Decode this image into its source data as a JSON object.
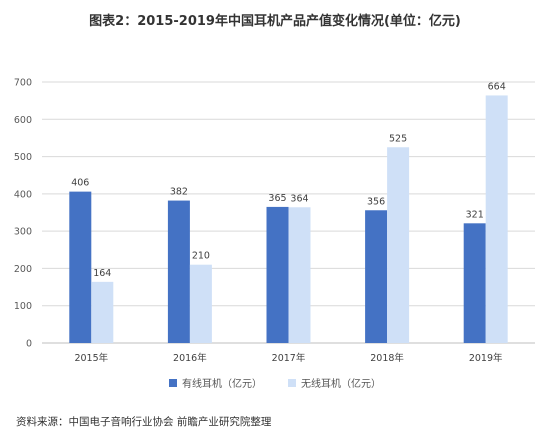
{
  "title": "图表2：2015-2019年中国耳机产品产值变化情况(单位：亿元)",
  "source": "资料来源：中国电子音响行业协会 前瞻产业研究院整理",
  "colors": {
    "wired": "#4472c4",
    "wireless": "#cfe0f7",
    "grid": "#d9d9d9",
    "axis": "#bfbfbf"
  },
  "chart_data": {
    "type": "bar",
    "title": "图表2：2015-2019年中国耳机产品产值变化情况(单位：亿元)",
    "xlabel": "",
    "ylabel": "",
    "categories": [
      "2015年",
      "2016年",
      "2017年",
      "2018年",
      "2019年"
    ],
    "series": [
      {
        "name": "有线耳机（亿元）",
        "values": [
          406,
          382,
          365,
          356,
          321
        ]
      },
      {
        "name": "无线耳机（亿元）",
        "values": [
          164,
          210,
          364,
          525,
          664
        ]
      }
    ],
    "ylim": [
      0,
      700
    ],
    "yticks": [
      0,
      100,
      200,
      300,
      400,
      500,
      600,
      700
    ],
    "grid": true,
    "legend": "bottom"
  }
}
